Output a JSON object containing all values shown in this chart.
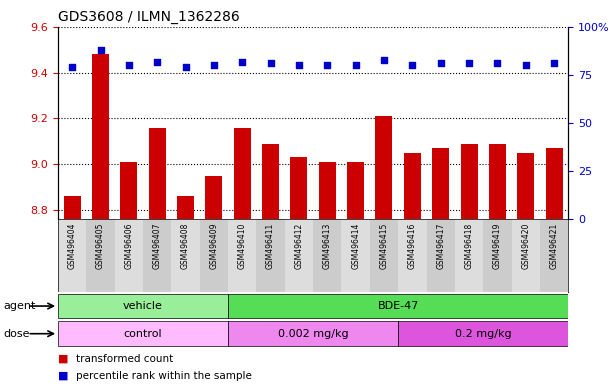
{
  "title": "GDS3608 / ILMN_1362286",
  "samples": [
    "GSM496404",
    "GSM496405",
    "GSM496406",
    "GSM496407",
    "GSM496408",
    "GSM496409",
    "GSM496410",
    "GSM496411",
    "GSM496412",
    "GSM496413",
    "GSM496414",
    "GSM496415",
    "GSM496416",
    "GSM496417",
    "GSM496418",
    "GSM496419",
    "GSM496420",
    "GSM496421"
  ],
  "transformed_count": [
    8.86,
    9.48,
    9.01,
    9.16,
    8.86,
    8.95,
    9.16,
    9.09,
    9.03,
    9.01,
    9.01,
    9.21,
    9.05,
    9.07,
    9.09,
    9.09,
    9.05,
    9.07
  ],
  "percentile_rank": [
    79,
    88,
    80,
    82,
    79,
    80,
    82,
    81,
    80,
    80,
    80,
    83,
    80,
    81,
    81,
    81,
    80,
    81
  ],
  "ylim_left": [
    8.76,
    9.6
  ],
  "ylim_right": [
    0,
    100
  ],
  "yticks_left": [
    8.8,
    9.0,
    9.2,
    9.4,
    9.6
  ],
  "yticks_right": [
    0,
    25,
    50,
    75,
    100
  ],
  "bar_color": "#cc0000",
  "dot_color": "#0000cc",
  "bar_width": 0.6,
  "agent_groups": [
    {
      "label": "vehicle",
      "start": 0,
      "end": 5,
      "color": "#99ee99"
    },
    {
      "label": "BDE-47",
      "start": 6,
      "end": 17,
      "color": "#55dd55"
    }
  ],
  "dose_groups": [
    {
      "label": "control",
      "start": 0,
      "end": 5,
      "color": "#ffbbff"
    },
    {
      "label": "0.002 mg/kg",
      "start": 6,
      "end": 11,
      "color": "#ee88ee"
    },
    {
      "label": "0.2 mg/kg",
      "start": 12,
      "end": 17,
      "color": "#dd55dd"
    }
  ],
  "legend_items": [
    {
      "label": "transformed count",
      "color": "#cc0000"
    },
    {
      "label": "percentile rank within the sample",
      "color": "#0000cc"
    }
  ],
  "grid_linestyle": "dotted",
  "left_axis_color": "#cc0000",
  "right_axis_color": "#0000cc",
  "tick_label_bg": "#dddddd"
}
